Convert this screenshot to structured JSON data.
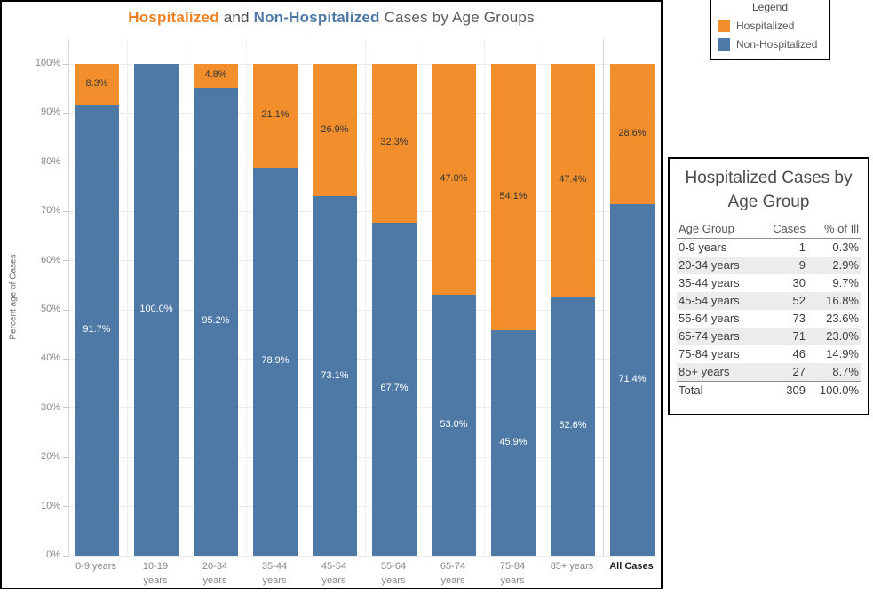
{
  "chart": {
    "title_parts": [
      {
        "text": "Hospitalized",
        "color": "#EF8122",
        "bold": true
      },
      {
        "text": " and ",
        "color": "#4d4d4d",
        "bold": false
      },
      {
        "text": "Non-Hospitalized",
        "color": "#4E79A7",
        "bold": true
      },
      {
        "text": " Cases by Age Groups",
        "color": "#5a5a5a",
        "bold": false
      }
    ],
    "y_axis_title": "Percent age of Cases",
    "y_tick_labels": [
      "0%",
      "10%",
      "20%",
      "30%",
      "40%",
      "50%",
      "60%",
      "70%",
      "80%",
      "90%",
      "100%"
    ]
  },
  "chart_data": {
    "type": "bar",
    "stacked": true,
    "units": "percent",
    "title": "Hospitalized and Non-Hospitalized Cases by Age Groups",
    "ylabel": "Percent age of Cases",
    "ylim": [
      0,
      100
    ],
    "grid": true,
    "legend_position": "top-right outside",
    "categories": [
      "0-9 years",
      "10-19 years",
      "20-34 years",
      "35-44 years",
      "45-54 years",
      "55-64 years",
      "65-74 years",
      "75-84 years",
      "85+ years",
      "All Cases"
    ],
    "x_label_lines": [
      [
        "0-9 years"
      ],
      [
        "10-19",
        "years"
      ],
      [
        "20-34",
        "years"
      ],
      [
        "35-44",
        "years"
      ],
      [
        "45-54",
        "years"
      ],
      [
        "55-64",
        "years"
      ],
      [
        "65-74",
        "years"
      ],
      [
        "75-84",
        "years"
      ],
      [
        "85+ years"
      ],
      [
        "All Cases"
      ]
    ],
    "series": [
      {
        "name": "Hospitalized",
        "color": "#F28E2B",
        "values": [
          8.3,
          0,
          4.8,
          21.1,
          26.9,
          32.3,
          47.0,
          54.1,
          47.4,
          28.6
        ],
        "labels": [
          "8.3%",
          "",
          "4.8%",
          "21.1%",
          "26.9%",
          "32.3%",
          "47.0%",
          "54.1%",
          "47.4%",
          "28.6%"
        ]
      },
      {
        "name": "Non-Hospitalized",
        "color": "#4E79A7",
        "values": [
          91.7,
          100.0,
          95.2,
          78.9,
          73.1,
          67.7,
          53.0,
          45.9,
          52.6,
          71.4
        ],
        "labels": [
          "91.7%",
          "100.0%",
          "95.2%",
          "78.9%",
          "73.1%",
          "67.7%",
          "53.0%",
          "45.9%",
          "52.6%",
          "71.4%"
        ]
      }
    ]
  },
  "legend": {
    "title": "Legend",
    "items": [
      {
        "label": "Hospitalized",
        "color": "#F28E2B"
      },
      {
        "label": "Non-Hospitalized",
        "color": "#4E79A7"
      }
    ]
  },
  "table": {
    "title_lines": [
      "Hospitalized Cases by",
      "Age Group"
    ],
    "columns": [
      "Age Group",
      "Cases",
      "% of Ill"
    ],
    "rows": [
      [
        "0-9 years",
        "1",
        "0.3%"
      ],
      [
        "20-34 years",
        "9",
        "2.9%"
      ],
      [
        "35-44 years",
        "30",
        "9.7%"
      ],
      [
        "45-54 years",
        "52",
        "16.8%"
      ],
      [
        "55-64 years",
        "73",
        "23.6%"
      ],
      [
        "65-74 years",
        "71",
        "23.0%"
      ],
      [
        "75-84 years",
        "46",
        "14.9%"
      ],
      [
        "85+ years",
        "27",
        "8.7%"
      ]
    ],
    "total_row": [
      "Total",
      "309",
      "100.0%"
    ]
  }
}
